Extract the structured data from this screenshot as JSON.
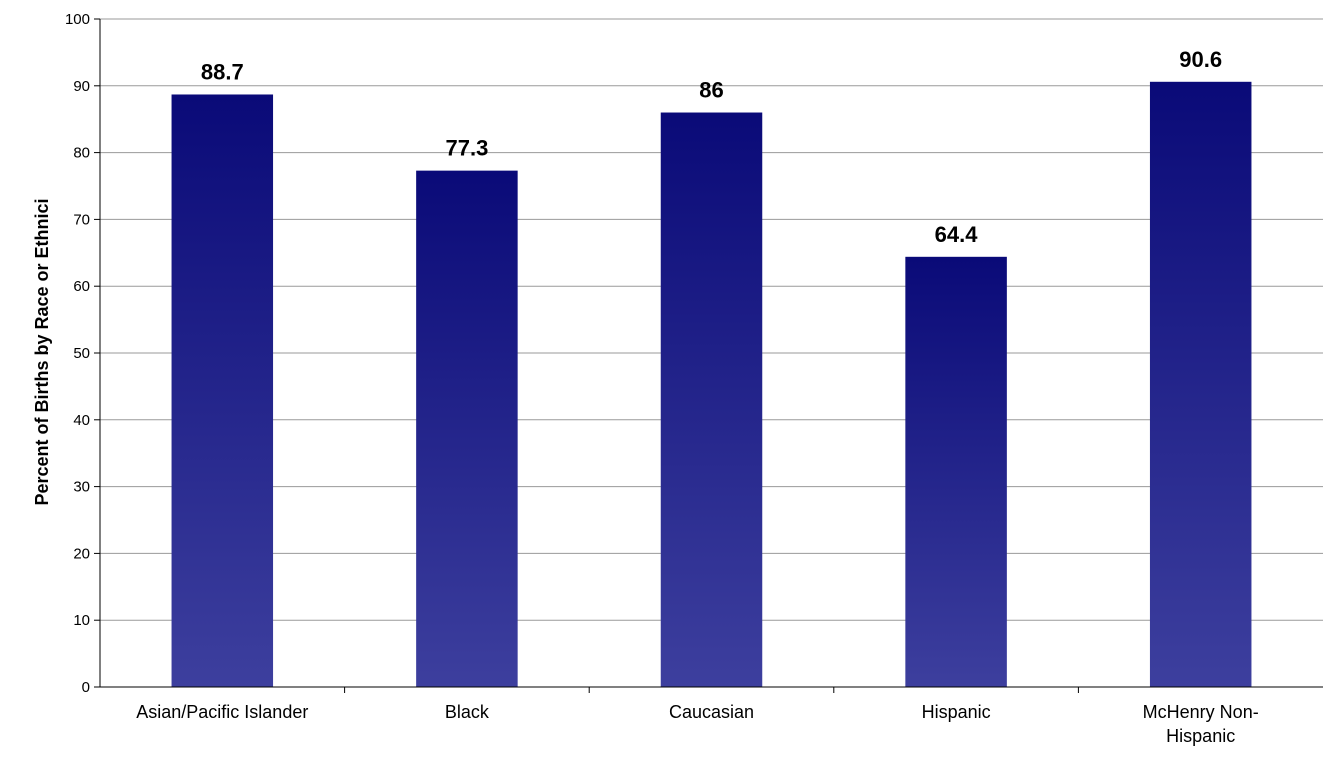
{
  "chart_data": {
    "type": "bar",
    "categories": [
      "Asian/Pacific Islander",
      "Black",
      "Caucasian",
      "Hispanic",
      "McHenry Non-Hispanic"
    ],
    "category_lines": [
      [
        "Asian/Pacific Islander"
      ],
      [
        "Black"
      ],
      [
        "Caucasian"
      ],
      [
        "Hispanic"
      ],
      [
        "McHenry Non-",
        "Hispanic"
      ]
    ],
    "values": [
      88.7,
      77.3,
      86,
      64.4,
      90.6
    ],
    "value_labels": [
      "88.7",
      "77.3",
      "86",
      "64.4",
      "90.6"
    ],
    "title": "",
    "xlabel": "",
    "ylabel": "Percent of Births by Race or Ethnici",
    "ylim": [
      0,
      100
    ],
    "yticks": [
      0,
      10,
      20,
      30,
      40,
      50,
      60,
      70,
      80,
      90,
      100
    ],
    "ytick_labels": [
      "0",
      "10",
      "20",
      "30",
      "40",
      "50",
      "60",
      "70",
      "80",
      "90",
      "100"
    ],
    "grid": true,
    "legend": "none",
    "colors": {
      "bar_top": "#0a0a78",
      "bar_bottom": "#3d3f9e",
      "grid": "#9a9a9a",
      "axis": "#000000"
    }
  }
}
